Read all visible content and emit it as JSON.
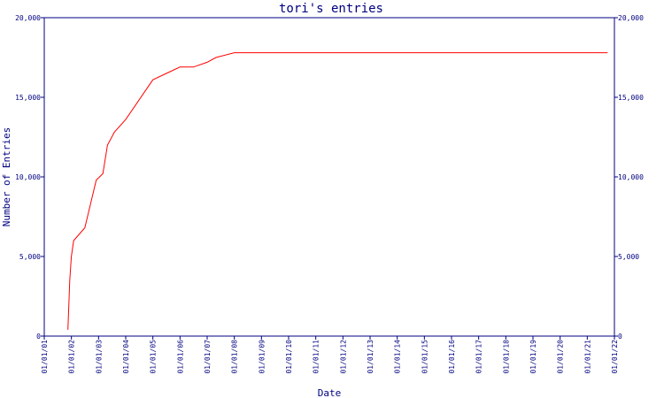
{
  "chart_data": {
    "type": "line",
    "title": "tori's entries",
    "xlabel": "Date",
    "ylabel": "Number of Entries",
    "ylim": [
      0,
      20000
    ],
    "y_ticks": [
      0,
      5000,
      10000,
      15000,
      20000
    ],
    "y_tick_labels": [
      "0",
      "5,000",
      "10,000",
      "15,000",
      "20,000"
    ],
    "x_ticks": [
      "01/01/01",
      "01/01/02",
      "01/01/03",
      "01/01/04",
      "01/01/05",
      "01/01/06",
      "01/01/07",
      "01/01/08",
      "01/01/09",
      "01/01/10",
      "01/01/11",
      "01/01/12",
      "01/01/13",
      "01/01/14",
      "01/01/15",
      "01/01/16",
      "01/01/17",
      "01/01/18",
      "01/01/19",
      "01/01/20",
      "01/01/21",
      "01/01/22"
    ],
    "grid": false,
    "colors": {
      "line": "#ff0000",
      "axes": "#000080",
      "text": "#000080"
    },
    "series": [
      {
        "values": [
          {
            "x": "2001-11-15",
            "y": 400
          },
          {
            "x": "2001-12-10",
            "y": 3500
          },
          {
            "x": "2002-01-01",
            "y": 5000
          },
          {
            "x": "2002-02-01",
            "y": 6000
          },
          {
            "x": "2002-07-01",
            "y": 6800
          },
          {
            "x": "2002-12-01",
            "y": 9800
          },
          {
            "x": "2003-03-01",
            "y": 10200
          },
          {
            "x": "2003-05-01",
            "y": 12000
          },
          {
            "x": "2003-08-01",
            "y": 12800
          },
          {
            "x": "2004-01-01",
            "y": 13600
          },
          {
            "x": "2005-01-01",
            "y": 16100
          },
          {
            "x": "2005-07-01",
            "y": 16500
          },
          {
            "x": "2006-01-01",
            "y": 16900
          },
          {
            "x": "2006-07-01",
            "y": 16900
          },
          {
            "x": "2007-01-01",
            "y": 17200
          },
          {
            "x": "2007-05-01",
            "y": 17500
          },
          {
            "x": "2008-01-01",
            "y": 17800
          },
          {
            "x": "2021-10-01",
            "y": 17800
          }
        ]
      }
    ]
  }
}
